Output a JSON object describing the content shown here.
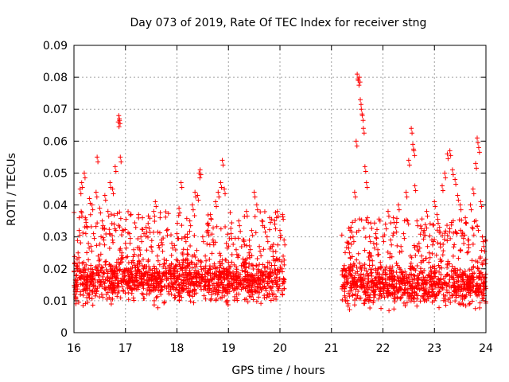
{
  "chart_data": {
    "type": "scatter",
    "title": "Day 073 of 2019, Rate Of TEC Index for receiver stng",
    "xlabel": "GPS time / hours",
    "ylabel": "ROTI / TECUs",
    "xlim": [
      16,
      24
    ],
    "ylim": [
      0,
      0.09
    ],
    "xticks": [
      16,
      17,
      18,
      19,
      20,
      21,
      22,
      23,
      24
    ],
    "yticks": [
      0,
      0.01,
      0.02,
      0.03,
      0.04,
      0.05,
      0.06,
      0.07,
      0.08,
      0.09
    ],
    "ytick_labels": [
      "0",
      "0.01",
      "0.02",
      "0.03",
      "0.04",
      "0.05",
      "0.06",
      "0.07",
      "0.08",
      "0.09"
    ],
    "grid": true,
    "marker": "+",
    "color": "#ff0000",
    "series": [
      {
        "name": "ROTI",
        "points": [
          [
            16.02,
            0.012
          ],
          [
            16.05,
            0.018
          ],
          [
            16.08,
            0.025
          ],
          [
            16.1,
            0.032
          ],
          [
            16.12,
            0.045
          ],
          [
            16.14,
            0.038
          ],
          [
            16.15,
            0.047
          ],
          [
            16.17,
            0.015
          ],
          [
            16.19,
            0.022
          ],
          [
            16.2,
            0.05
          ],
          [
            16.22,
            0.036
          ],
          [
            16.25,
            0.011
          ],
          [
            16.28,
            0.028
          ],
          [
            16.3,
            0.042
          ],
          [
            16.33,
            0.019
          ],
          [
            16.35,
            0.04
          ],
          [
            16.38,
            0.031
          ],
          [
            16.4,
            0.013
          ],
          [
            16.43,
            0.044
          ],
          [
            16.45,
            0.055
          ],
          [
            16.47,
            0.024
          ],
          [
            16.5,
            0.039
          ],
          [
            16.53,
            0.016
          ],
          [
            16.55,
            0.035
          ],
          [
            16.58,
            0.029
          ],
          [
            16.6,
            0.043
          ],
          [
            16.63,
            0.012
          ],
          [
            16.66,
            0.038
          ],
          [
            16.7,
            0.047
          ],
          [
            16.72,
            0.021
          ],
          [
            16.75,
            0.045
          ],
          [
            16.78,
            0.034
          ],
          [
            16.8,
            0.052
          ],
          [
            16.83,
            0.017
          ],
          [
            16.86,
            0.066
          ],
          [
            16.87,
            0.068
          ],
          [
            16.88,
            0.067
          ],
          [
            16.9,
            0.055
          ],
          [
            16.93,
            0.025
          ],
          [
            16.96,
            0.019
          ],
          [
            17.0,
            0.028
          ],
          [
            17.04,
            0.014
          ],
          [
            17.08,
            0.031
          ],
          [
            17.12,
            0.022
          ],
          [
            17.16,
            0.026
          ],
          [
            17.2,
            0.018
          ],
          [
            17.25,
            0.024
          ],
          [
            17.3,
            0.03
          ],
          [
            17.35,
            0.02
          ],
          [
            17.4,
            0.033
          ],
          [
            17.45,
            0.015
          ],
          [
            17.5,
            0.027
          ],
          [
            17.55,
            0.038
          ],
          [
            17.58,
            0.041
          ],
          [
            17.62,
            0.024
          ],
          [
            17.66,
            0.019
          ],
          [
            17.7,
            0.029
          ],
          [
            17.75,
            0.023
          ],
          [
            17.8,
            0.032
          ],
          [
            17.85,
            0.021
          ],
          [
            17.9,
            0.028
          ],
          [
            17.95,
            0.017
          ],
          [
            18.0,
            0.031
          ],
          [
            18.04,
            0.039
          ],
          [
            18.08,
            0.047
          ],
          [
            18.12,
            0.022
          ],
          [
            18.16,
            0.03
          ],
          [
            18.2,
            0.026
          ],
          [
            18.25,
            0.035
          ],
          [
            18.3,
            0.04
          ],
          [
            18.35,
            0.044
          ],
          [
            18.4,
            0.043
          ],
          [
            18.43,
            0.05
          ],
          [
            18.45,
            0.051
          ],
          [
            18.5,
            0.03
          ],
          [
            18.55,
            0.024
          ],
          [
            18.6,
            0.032
          ],
          [
            18.65,
            0.037
          ],
          [
            18.7,
            0.029
          ],
          [
            18.75,
            0.041
          ],
          [
            18.8,
            0.044
          ],
          [
            18.85,
            0.047
          ],
          [
            18.88,
            0.054
          ],
          [
            18.92,
            0.045
          ],
          [
            18.96,
            0.028
          ],
          [
            19.0,
            0.022
          ],
          [
            19.05,
            0.031
          ],
          [
            19.1,
            0.018
          ],
          [
            19.15,
            0.026
          ],
          [
            19.2,
            0.035
          ],
          [
            19.25,
            0.021
          ],
          [
            19.3,
            0.029
          ],
          [
            19.35,
            0.038
          ],
          [
            19.4,
            0.025
          ],
          [
            19.45,
            0.032
          ],
          [
            19.5,
            0.044
          ],
          [
            19.55,
            0.04
          ],
          [
            19.6,
            0.027
          ],
          [
            19.65,
            0.035
          ],
          [
            19.7,
            0.033
          ],
          [
            19.75,
            0.03
          ],
          [
            19.8,
            0.036
          ],
          [
            19.85,
            0.027
          ],
          [
            19.9,
            0.034
          ],
          [
            19.95,
            0.038
          ],
          [
            20.0,
            0.032
          ],
          [
            20.05,
            0.037
          ],
          [
            20.08,
            0.029
          ],
          [
            21.25,
            0.021
          ],
          [
            21.28,
            0.018
          ],
          [
            21.32,
            0.028
          ],
          [
            21.35,
            0.025
          ],
          [
            21.38,
            0.033
          ],
          [
            21.42,
            0.03
          ],
          [
            21.45,
            0.044
          ],
          [
            21.48,
            0.06
          ],
          [
            21.5,
            0.081
          ],
          [
            21.52,
            0.079
          ],
          [
            21.54,
            0.08
          ],
          [
            21.56,
            0.073
          ],
          [
            21.58,
            0.07
          ],
          [
            21.6,
            0.068
          ],
          [
            21.62,
            0.064
          ],
          [
            21.65,
            0.052
          ],
          [
            21.68,
            0.047
          ],
          [
            21.7,
            0.036
          ],
          [
            21.74,
            0.03
          ],
          [
            21.78,
            0.024
          ],
          [
            21.82,
            0.028
          ],
          [
            21.86,
            0.031
          ],
          [
            21.9,
            0.026
          ],
          [
            21.95,
            0.022
          ],
          [
            22.0,
            0.03
          ],
          [
            22.05,
            0.034
          ],
          [
            22.1,
            0.038
          ],
          [
            22.15,
            0.029
          ],
          [
            22.2,
            0.036
          ],
          [
            22.25,
            0.033
          ],
          [
            22.3,
            0.04
          ],
          [
            22.35,
            0.027
          ],
          [
            22.4,
            0.031
          ],
          [
            22.45,
            0.044
          ],
          [
            22.5,
            0.054
          ],
          [
            22.55,
            0.064
          ],
          [
            22.58,
            0.059
          ],
          [
            22.6,
            0.057
          ],
          [
            22.62,
            0.046
          ],
          [
            22.66,
            0.035
          ],
          [
            22.7,
            0.028
          ],
          [
            22.75,
            0.024
          ],
          [
            22.8,
            0.032
          ],
          [
            22.85,
            0.038
          ],
          [
            22.9,
            0.025
          ],
          [
            22.95,
            0.029
          ],
          [
            23.0,
            0.041
          ],
          [
            23.05,
            0.037
          ],
          [
            23.1,
            0.033
          ],
          [
            23.15,
            0.046
          ],
          [
            23.2,
            0.05
          ],
          [
            23.25,
            0.056
          ],
          [
            23.3,
            0.057
          ],
          [
            23.35,
            0.051
          ],
          [
            23.4,
            0.048
          ],
          [
            23.45,
            0.043
          ],
          [
            23.5,
            0.04
          ],
          [
            23.55,
            0.031
          ],
          [
            23.6,
            0.036
          ],
          [
            23.65,
            0.029
          ],
          [
            23.7,
            0.04
          ],
          [
            23.75,
            0.045
          ],
          [
            23.8,
            0.053
          ],
          [
            23.83,
            0.061
          ],
          [
            23.86,
            0.058
          ],
          [
            23.9,
            0.041
          ],
          [
            23.93,
            0.03
          ],
          [
            23.96,
            0.027
          ],
          [
            23.99,
            0.029
          ]
        ],
        "dense_band": [
          {
            "x_range": [
              16.0,
              20.1
            ],
            "y_min": 0.007,
            "y_max": 0.026,
            "y_center": 0.016,
            "n": 1400
          },
          {
            "x_range": [
              21.2,
              24.0
            ],
            "y_min": 0.006,
            "y_max": 0.024,
            "y_center": 0.014,
            "n": 1000
          }
        ]
      }
    ]
  }
}
